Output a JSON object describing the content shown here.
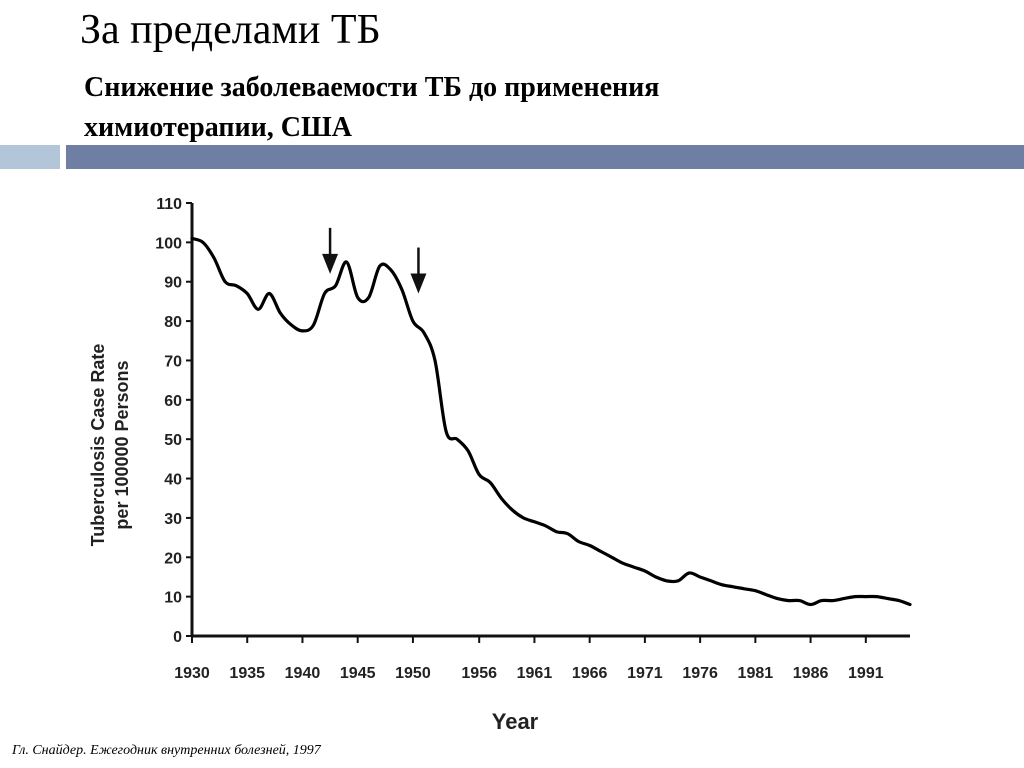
{
  "slide": {
    "title": "За пределами ТБ",
    "subtitle": "Снижение заболеваемости ТБ до применения химиотерапии, США",
    "footnote": "Гл. Снайдер. Ежегодник внутренних болезней, 1997",
    "accent_bar_colors": [
      "#b3c6d9",
      "#6f7ea3"
    ]
  },
  "chart_data": {
    "type": "line",
    "title": "",
    "xlabel": "Year",
    "ylabel": "Tuberculosis Case Rate per 100000 Persons",
    "ylabel_lines": [
      "Tuberculosis Case Rate",
      "per 100000 Persons"
    ],
    "xlim": [
      1930,
      1995
    ],
    "ylim": [
      0,
      110
    ],
    "x_ticks": [
      1930,
      1935,
      1940,
      1945,
      1950,
      1956,
      1961,
      1966,
      1971,
      1976,
      1981,
      1986,
      1991
    ],
    "y_ticks": [
      0,
      10,
      20,
      30,
      40,
      50,
      60,
      70,
      80,
      90,
      100,
      110
    ],
    "grid": false,
    "series": [
      {
        "color": "#000000",
        "x": [
          1930,
          1931,
          1932,
          1933,
          1934,
          1935,
          1936,
          1937,
          1938,
          1939,
          1940,
          1941,
          1942,
          1943,
          1944,
          1945,
          1946,
          1947,
          1948,
          1949,
          1950,
          1951,
          1952,
          1953,
          1954,
          1955,
          1956,
          1957,
          1958,
          1959,
          1960,
          1961,
          1962,
          1963,
          1964,
          1965,
          1966,
          1967,
          1968,
          1969,
          1970,
          1971,
          1972,
          1973,
          1974,
          1975,
          1976,
          1977,
          1978,
          1979,
          1980,
          1981,
          1982,
          1983,
          1984,
          1985,
          1986,
          1987,
          1988,
          1989,
          1990,
          1991,
          1992,
          1993,
          1994,
          1995
        ],
        "values": [
          101,
          100,
          96,
          90,
          89,
          87,
          83,
          87,
          82,
          79,
          77.5,
          79,
          87,
          89,
          95,
          86,
          86,
          94,
          93,
          88,
          80,
          77,
          70,
          52,
          50,
          47,
          41,
          39,
          35,
          32,
          30,
          29,
          28,
          26.5,
          26,
          24,
          23,
          21.5,
          20,
          18.5,
          17.5,
          16.5,
          15,
          14,
          14,
          16,
          15,
          14,
          13,
          12.5,
          12,
          11.5,
          10.5,
          9.5,
          9,
          9,
          8,
          9,
          9,
          9.5,
          10,
          10,
          10,
          9.5,
          9,
          8
        ]
      }
    ],
    "annotations": [
      {
        "type": "arrow-down",
        "x": 1942.5,
        "y": 92
      },
      {
        "type": "arrow-down",
        "x": 1950.5,
        "y": 87
      }
    ]
  }
}
